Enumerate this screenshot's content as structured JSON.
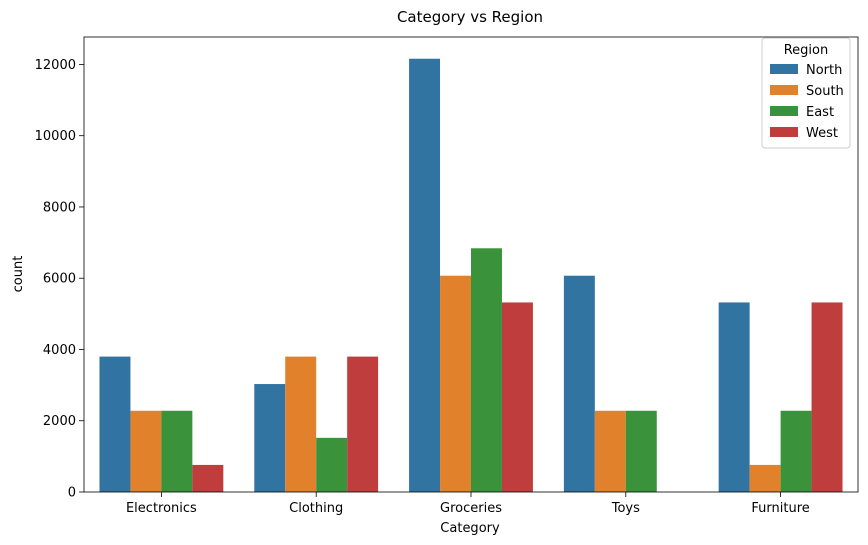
{
  "chart_data": {
    "type": "bar",
    "title": "Category vs Region",
    "xlabel": "Category",
    "ylabel": "count",
    "categories": [
      "Electronics",
      "Clothing",
      "Groceries",
      "Toys",
      "Furniture"
    ],
    "series": [
      {
        "name": "North",
        "color": "#3274a1",
        "values": [
          3800,
          3030,
          12160,
          6070,
          5320
        ]
      },
      {
        "name": "South",
        "color": "#e1812c",
        "values": [
          2280,
          3800,
          6070,
          2280,
          760
        ]
      },
      {
        "name": "East",
        "color": "#3a923a",
        "values": [
          2280,
          1520,
          6840,
          2280,
          2280
        ]
      },
      {
        "name": "West",
        "color": "#c03d3e",
        "values": [
          760,
          3800,
          5320,
          0,
          5320
        ]
      }
    ],
    "ylim": [
      0,
      12770
    ],
    "yticks": [
      0,
      2000,
      4000,
      6000,
      8000,
      10000,
      12000
    ],
    "grid": false,
    "legend": {
      "title": "Region",
      "position": "top-right"
    }
  }
}
